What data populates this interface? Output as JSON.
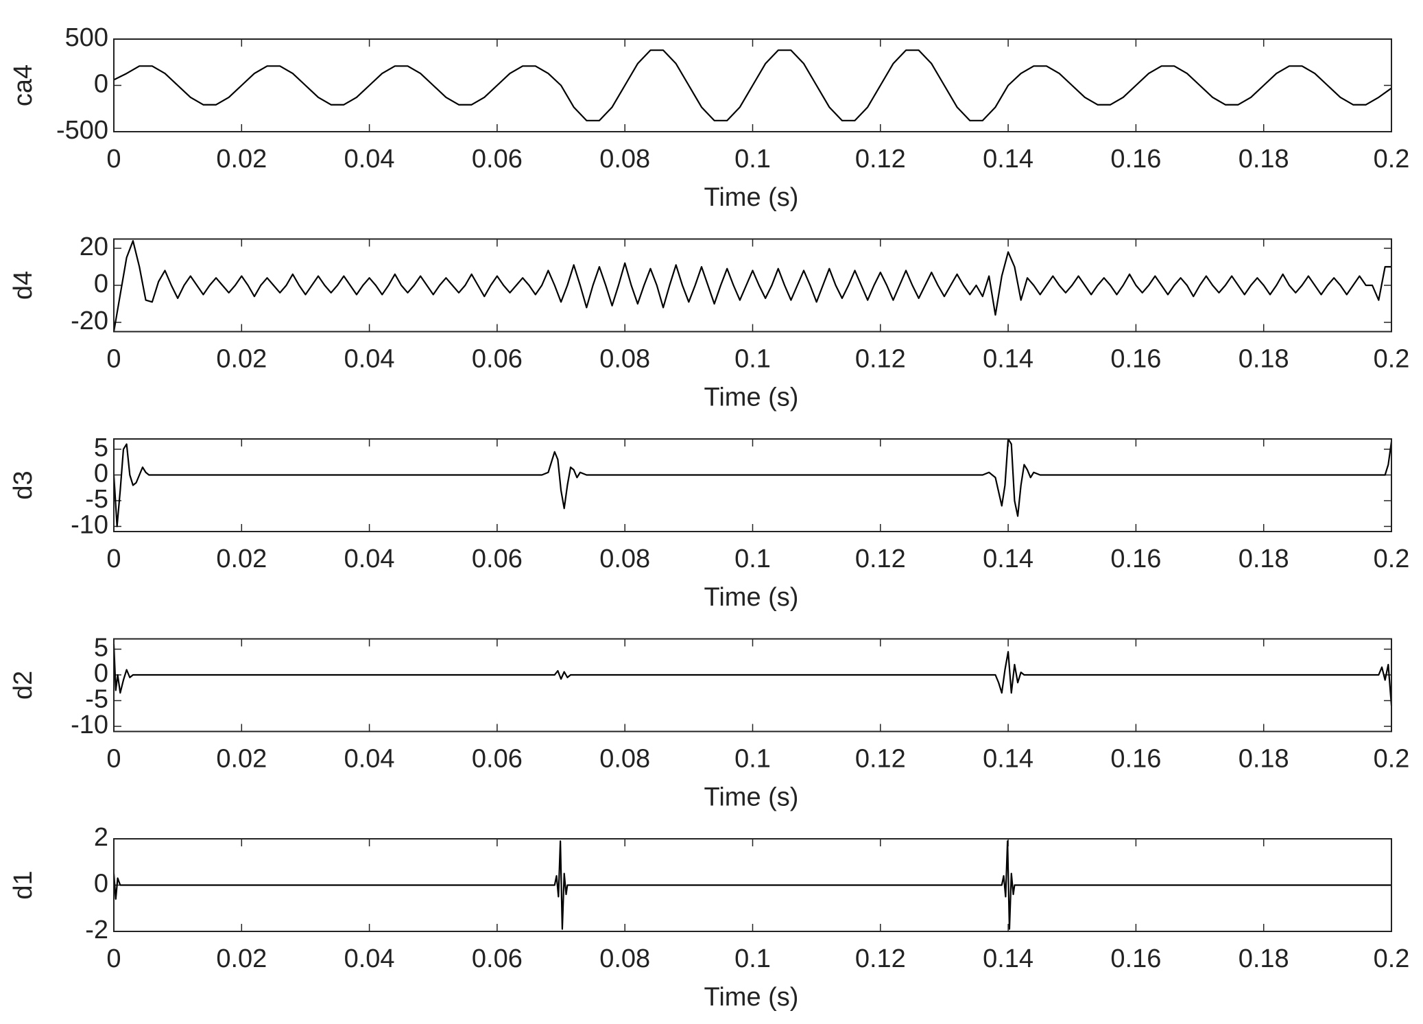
{
  "chart_data": [
    {
      "type": "line",
      "ylabel": "ca4",
      "xlabel": "Time (s)",
      "color": "#000000",
      "xlim": [
        0,
        0.2
      ],
      "xticks": [
        0,
        0.02,
        0.04,
        0.06,
        0.08,
        0.1,
        0.12,
        0.14,
        0.16,
        0.18,
        0.2
      ],
      "ylim": [
        -500,
        500
      ],
      "yticks": [
        -500,
        0,
        500
      ],
      "x": [
        0,
        0.002,
        0.004,
        0.006,
        0.008,
        0.01,
        0.012,
        0.014,
        0.016,
        0.018,
        0.02,
        0.022,
        0.024,
        0.026,
        0.028,
        0.03,
        0.032,
        0.034,
        0.036,
        0.038,
        0.04,
        0.042,
        0.044,
        0.046,
        0.048,
        0.05,
        0.052,
        0.054,
        0.056,
        0.058,
        0.06,
        0.062,
        0.064,
        0.066,
        0.068,
        0.07,
        0.072,
        0.074,
        0.076,
        0.078,
        0.08,
        0.082,
        0.084,
        0.086,
        0.088,
        0.09,
        0.092,
        0.094,
        0.096,
        0.098,
        0.1,
        0.102,
        0.104,
        0.106,
        0.108,
        0.11,
        0.112,
        0.114,
        0.116,
        0.118,
        0.12,
        0.122,
        0.124,
        0.126,
        0.128,
        0.13,
        0.132,
        0.134,
        0.136,
        0.138,
        0.14,
        0.142,
        0.144,
        0.146,
        0.148,
        0.15,
        0.152,
        0.154,
        0.156,
        0.158,
        0.16,
        0.162,
        0.164,
        0.166,
        0.168,
        0.17,
        0.172,
        0.174,
        0.176,
        0.178,
        0.18,
        0.182,
        0.184,
        0.186,
        0.188,
        0.19,
        0.192,
        0.194,
        0.196,
        0.198,
        0.2
      ],
      "values": [
        60,
        129,
        209,
        209,
        129,
        0,
        -129,
        -209,
        -209,
        -129,
        0,
        129,
        209,
        209,
        129,
        0,
        -129,
        -209,
        -209,
        -129,
        0,
        129,
        209,
        209,
        129,
        0,
        -129,
        -209,
        -209,
        -129,
        0,
        129,
        209,
        209,
        129,
        0,
        -235,
        -380,
        -380,
        -235,
        0,
        235,
        380,
        380,
        235,
        0,
        -235,
        -380,
        -380,
        -235,
        0,
        235,
        380,
        380,
        235,
        0,
        -235,
        -380,
        -380,
        -235,
        0,
        235,
        380,
        380,
        235,
        0,
        -235,
        -380,
        -380,
        -235,
        0,
        129,
        209,
        209,
        129,
        0,
        -129,
        -209,
        -209,
        -129,
        0,
        129,
        209,
        209,
        129,
        0,
        -129,
        -209,
        -209,
        -129,
        0,
        129,
        209,
        209,
        129,
        0,
        -129,
        -209,
        -209,
        -129,
        -30
      ]
    },
    {
      "type": "line",
      "ylabel": "d4",
      "xlabel": "Time (s)",
      "color": "#000000",
      "xlim": [
        0,
        0.2
      ],
      "xticks": [
        0,
        0.02,
        0.04,
        0.06,
        0.08,
        0.1,
        0.12,
        0.14,
        0.16,
        0.18,
        0.2
      ],
      "ylim": [
        -25,
        25
      ],
      "yticks": [
        -20,
        0,
        20
      ],
      "x": [
        0,
        0.001,
        0.002,
        0.003,
        0.004,
        0.005,
        0.006,
        0.007,
        0.008,
        0.009,
        0.01,
        0.011,
        0.012,
        0.013,
        0.014,
        0.015,
        0.016,
        0.017,
        0.018,
        0.019,
        0.02,
        0.021,
        0.022,
        0.023,
        0.024,
        0.025,
        0.026,
        0.027,
        0.028,
        0.029,
        0.03,
        0.031,
        0.032,
        0.033,
        0.034,
        0.035,
        0.036,
        0.037,
        0.038,
        0.039,
        0.04,
        0.041,
        0.042,
        0.043,
        0.044,
        0.045,
        0.046,
        0.047,
        0.048,
        0.049,
        0.05,
        0.051,
        0.052,
        0.053,
        0.054,
        0.055,
        0.056,
        0.057,
        0.058,
        0.059,
        0.06,
        0.061,
        0.062,
        0.063,
        0.064,
        0.065,
        0.066,
        0.067,
        0.068,
        0.069,
        0.07,
        0.071,
        0.072,
        0.073,
        0.074,
        0.075,
        0.076,
        0.077,
        0.078,
        0.079,
        0.08,
        0.081,
        0.082,
        0.083,
        0.084,
        0.085,
        0.086,
        0.087,
        0.088,
        0.089,
        0.09,
        0.091,
        0.092,
        0.093,
        0.094,
        0.095,
        0.096,
        0.097,
        0.098,
        0.099,
        0.1,
        0.101,
        0.102,
        0.103,
        0.104,
        0.105,
        0.106,
        0.107,
        0.108,
        0.109,
        0.11,
        0.111,
        0.112,
        0.113,
        0.114,
        0.115,
        0.116,
        0.117,
        0.118,
        0.119,
        0.12,
        0.121,
        0.122,
        0.123,
        0.124,
        0.125,
        0.126,
        0.127,
        0.128,
        0.129,
        0.13,
        0.131,
        0.132,
        0.133,
        0.134,
        0.135,
        0.136,
        0.137,
        0.138,
        0.139,
        0.14,
        0.141,
        0.142,
        0.143,
        0.144,
        0.145,
        0.146,
        0.147,
        0.148,
        0.149,
        0.15,
        0.151,
        0.152,
        0.153,
        0.154,
        0.155,
        0.156,
        0.157,
        0.158,
        0.159,
        0.16,
        0.161,
        0.162,
        0.163,
        0.164,
        0.165,
        0.166,
        0.167,
        0.168,
        0.169,
        0.17,
        0.171,
        0.172,
        0.173,
        0.174,
        0.175,
        0.176,
        0.177,
        0.178,
        0.179,
        0.18,
        0.181,
        0.182,
        0.183,
        0.184,
        0.185,
        0.186,
        0.187,
        0.188,
        0.189,
        0.19,
        0.191,
        0.192,
        0.193,
        0.194,
        0.195,
        0.196,
        0.197,
        0.198,
        0.199,
        0.2
      ],
      "values": [
        -25,
        -5,
        15,
        24,
        10,
        -8,
        -9,
        2,
        8,
        0,
        -7,
        0,
        5,
        0,
        -5,
        0,
        4,
        0,
        -4,
        0,
        5,
        0,
        -6,
        0,
        4,
        0,
        -4,
        0,
        6,
        0,
        -5,
        0,
        5,
        0,
        -4,
        0,
        5,
        0,
        -5,
        0,
        4,
        0,
        -5,
        0,
        6,
        0,
        -4,
        0,
        5,
        0,
        -5,
        0,
        4,
        0,
        -4,
        0,
        6,
        0,
        -6,
        0,
        5,
        0,
        -4,
        0,
        4,
        0,
        -5,
        0,
        8,
        0,
        -9,
        0,
        11,
        0,
        -12,
        0,
        10,
        0,
        -11,
        0,
        12,
        0,
        -10,
        0,
        9,
        0,
        -12,
        0,
        11,
        0,
        -9,
        0,
        10,
        0,
        -10,
        0,
        9,
        0,
        -8,
        0,
        8,
        0,
        -7,
        0,
        9,
        0,
        -8,
        0,
        8,
        0,
        -9,
        0,
        9,
        0,
        -7,
        0,
        8,
        0,
        -8,
        0,
        7,
        0,
        -8,
        0,
        8,
        0,
        -7,
        0,
        7,
        0,
        -6,
        0,
        6,
        0,
        -5,
        0,
        -6,
        5,
        -16,
        5,
        18,
        10,
        -8,
        4,
        0,
        -5,
        0,
        5,
        0,
        -4,
        0,
        5,
        0,
        -5,
        0,
        4,
        0,
        -5,
        0,
        6,
        0,
        -4,
        0,
        5,
        0,
        -5,
        0,
        4,
        0,
        -6,
        0,
        5,
        0,
        -4,
        0,
        5,
        0,
        -5,
        0,
        4,
        0,
        -5,
        0,
        6,
        0,
        -4,
        0,
        5,
        0,
        -5,
        0,
        4,
        0,
        -5,
        0,
        5,
        0,
        0,
        -8,
        10,
        10
      ]
    },
    {
      "type": "line",
      "ylabel": "d3",
      "xlabel": "Time (s)",
      "color": "#000000",
      "xlim": [
        0,
        0.2
      ],
      "xticks": [
        0,
        0.02,
        0.04,
        0.06,
        0.08,
        0.1,
        0.12,
        0.14,
        0.16,
        0.18,
        0.2
      ],
      "ylim": [
        -11,
        7
      ],
      "yticks": [
        -10,
        -5,
        0,
        5
      ],
      "x": [
        0,
        0.0005,
        0.001,
        0.0015,
        0.002,
        0.0025,
        0.003,
        0.0035,
        0.004,
        0.0045,
        0.005,
        0.0055,
        0.067,
        0.068,
        0.069,
        0.0695,
        0.07,
        0.0705,
        0.071,
        0.0715,
        0.072,
        0.0725,
        0.073,
        0.074,
        0.136,
        0.137,
        0.138,
        0.139,
        0.1395,
        0.14,
        0.1405,
        0.141,
        0.1415,
        0.142,
        0.1425,
        0.143,
        0.1435,
        0.144,
        0.145,
        0.199,
        0.1995,
        0.2
      ],
      "values": [
        0,
        -10,
        -3,
        5,
        6,
        0,
        -2,
        -1.5,
        0,
        1.5,
        0.5,
        0,
        0,
        0.5,
        4.5,
        3,
        -3,
        -6.5,
        -2,
        1.5,
        1,
        -0.5,
        0.5,
        0,
        0,
        0.5,
        -0.5,
        -6,
        -2,
        7,
        6,
        -5,
        -8,
        -2,
        2,
        1,
        -0.5,
        0.5,
        0,
        0,
        2,
        6.5
      ]
    },
    {
      "type": "line",
      "ylabel": "d2",
      "xlabel": "Time (s)",
      "color": "#000000",
      "xlim": [
        0,
        0.2
      ],
      "xticks": [
        0,
        0.02,
        0.04,
        0.06,
        0.08,
        0.1,
        0.12,
        0.14,
        0.16,
        0.18,
        0.2
      ],
      "ylim": [
        -11,
        7
      ],
      "yticks": [
        -10,
        -5,
        0,
        5
      ],
      "x": [
        0,
        0.0003,
        0.0006,
        0.001,
        0.0015,
        0.002,
        0.0025,
        0.003,
        0.069,
        0.0695,
        0.07,
        0.0705,
        0.071,
        0.0715,
        0.138,
        0.1385,
        0.139,
        0.1395,
        0.14,
        0.1405,
        0.141,
        0.1415,
        0.142,
        0.1425,
        0.198,
        0.1985,
        0.199,
        0.1995,
        0.2
      ],
      "values": [
        6,
        -3,
        0,
        -3.5,
        -1,
        1,
        -0.5,
        0,
        0,
        0.8,
        -0.8,
        0.6,
        -0.5,
        0,
        0,
        -1.5,
        -3.5,
        1,
        4.5,
        -3.5,
        2,
        -1.5,
        0.5,
        0,
        0,
        1.5,
        -1,
        2,
        -6
      ]
    },
    {
      "type": "line",
      "ylabel": "d1",
      "xlabel": "Time (s)",
      "color": "#000000",
      "xlim": [
        0,
        0.2
      ],
      "xticks": [
        0,
        0.02,
        0.04,
        0.06,
        0.08,
        0.1,
        0.12,
        0.14,
        0.16,
        0.18,
        0.2
      ],
      "ylim": [
        -2,
        2
      ],
      "yticks": [
        -2,
        0,
        2
      ],
      "x": [
        0,
        0.0003,
        0.0006,
        0.001,
        0.069,
        0.0693,
        0.0696,
        0.0699,
        0.0702,
        0.0705,
        0.0708,
        0.071,
        0.139,
        0.1393,
        0.1396,
        0.1399,
        0.1402,
        0.1405,
        0.1408,
        0.141,
        0.2
      ],
      "values": [
        0.5,
        -0.6,
        0.3,
        0,
        0,
        0.4,
        -0.5,
        1.9,
        -1.9,
        0.5,
        -0.4,
        0,
        0,
        0.4,
        -0.5,
        1.9,
        -1.9,
        0.5,
        -0.4,
        0,
        0
      ]
    }
  ]
}
